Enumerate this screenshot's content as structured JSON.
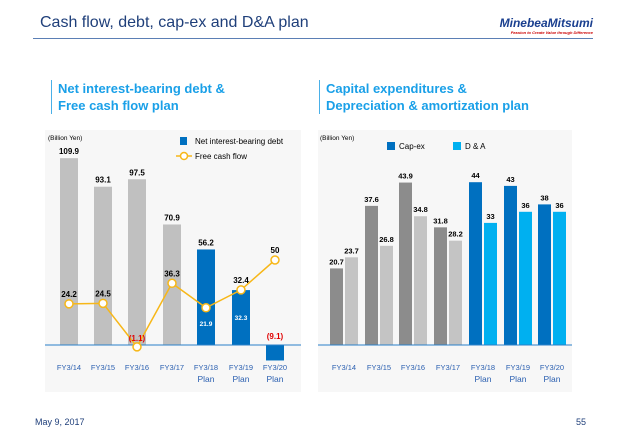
{
  "header": {
    "title": "Cash flow, debt, cap-ex and D&A plan",
    "logo": "MinebeaMitsumi",
    "logo_tagline": "Passion to Create Value through Difference"
  },
  "footer": {
    "date": "May 9, 2017",
    "page": "55"
  },
  "colors": {
    "debt": "#0070c0",
    "debt_actual": "#c0c0c0",
    "fcf": "#f7b718",
    "negative": "#e00000",
    "capex_actual": "#8c8c8c",
    "da_actual": "#c4c4c4",
    "capex_plan": "#0070c0",
    "da_plan": "#00b0f0"
  },
  "chart_data": [
    {
      "type": "bar+line",
      "title_line1": "Net interest-bearing debt &",
      "title_line2": "Free cash flow plan",
      "unit": "(Billion Yen)",
      "categories": [
        [
          "FY3/14",
          ""
        ],
        [
          "FY3/15",
          ""
        ],
        [
          "FY3/16",
          ""
        ],
        [
          "FY3/17",
          ""
        ],
        [
          "FY3/18",
          "Plan"
        ],
        [
          "FY3/19",
          "Plan"
        ],
        [
          "FY3/20",
          "Plan"
        ]
      ],
      "series": [
        {
          "name": "Net interest-bearing debt",
          "type": "bar",
          "values": [
            109.9,
            93.1,
            97.5,
            70.9,
            56.2,
            32.3,
            -9.1
          ],
          "labels": [
            "109.9",
            "93.1",
            "97.5",
            "70.9",
            "56.2",
            "32.3",
            "(9.1)"
          ]
        },
        {
          "name": "Free cash flow",
          "type": "line",
          "values": [
            24.2,
            24.5,
            -1.1,
            36.3,
            21.9,
            32.4,
            50
          ],
          "labels": [
            "24.2",
            "24.5",
            "(1.1)",
            "36.3",
            "21.9",
            "32.4",
            "50"
          ]
        }
      ],
      "legend": "top-right",
      "grid": false
    },
    {
      "type": "bar",
      "title_line1": "Capital expenditures &",
      "title_line2": "Depreciation & amortization plan",
      "unit": "(Billion Yen)",
      "categories": [
        [
          "FY3/14",
          ""
        ],
        [
          "FY3/15",
          ""
        ],
        [
          "FY3/16",
          ""
        ],
        [
          "FY3/17",
          ""
        ],
        [
          "FY3/18",
          "Plan"
        ],
        [
          "FY3/19",
          "Plan"
        ],
        [
          "FY3/20",
          "Plan"
        ]
      ],
      "series": [
        {
          "name": "Cap-ex",
          "values": [
            20.7,
            37.6,
            43.9,
            31.8,
            44,
            43,
            38
          ],
          "labels": [
            "20.7",
            "37.6",
            "43.9",
            "31.8",
            "44",
            "43",
            "38"
          ]
        },
        {
          "name": "D & A",
          "values": [
            23.7,
            26.8,
            34.8,
            28.2,
            33,
            36,
            36
          ],
          "labels": [
            "23.7",
            "26.8",
            "34.8",
            "28.2",
            "33",
            "36",
            "36"
          ]
        }
      ],
      "legend": "top",
      "grid": false
    }
  ]
}
